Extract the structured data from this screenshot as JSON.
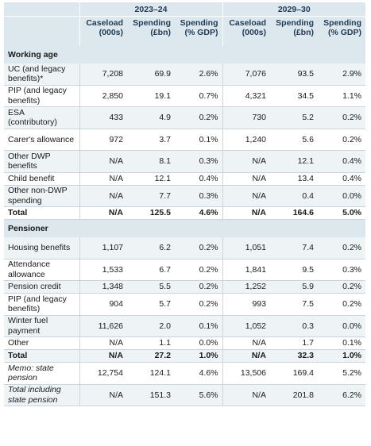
{
  "periods": [
    "2023–24",
    "2029–30"
  ],
  "column_headers": [
    "Caseload (000s)",
    "Spending (£bn)",
    "Spending (% GDP)",
    "Caseload (000s)",
    "Spending (£bn)",
    "Spending (% GDP)"
  ],
  "sections": [
    {
      "title": "Working age",
      "rows": [
        {
          "label": "UC (and legacy benefits)*",
          "values": [
            "7,208",
            "69.9",
            "2.6%",
            "7,076",
            "93.5",
            "2.9%"
          ],
          "h": 2,
          "shade": true
        },
        {
          "label": "PIP (and legacy benefits)",
          "values": [
            "2,850",
            "19.1",
            "0.7%",
            "4,321",
            "34.5",
            "1.1%"
          ],
          "h": 2,
          "shade": false
        },
        {
          "label": "ESA (contributory)",
          "values": [
            "433",
            "4.9",
            "0.2%",
            "730",
            "5.2",
            "0.2%"
          ],
          "h": 2,
          "shade": true
        },
        {
          "label": "Carer's allowance",
          "values": [
            "972",
            "3.7",
            "0.1%",
            "1,240",
            "5.6",
            "0.2%"
          ],
          "h": 2,
          "shade": false
        },
        {
          "label": "Other DWP benefits",
          "values": [
            "N/A",
            "8.1",
            "0.3%",
            "N/A",
            "12.1",
            "0.4%"
          ],
          "h": 2,
          "shade": true
        },
        {
          "label": "Child benefit",
          "values": [
            "N/A",
            "12.1",
            "0.4%",
            "N/A",
            "13.4",
            "0.4%"
          ],
          "h": 1,
          "shade": false
        },
        {
          "label": "Other non-DWP spending",
          "values": [
            "N/A",
            "7.7",
            "0.3%",
            "N/A",
            "0.4",
            "0.0%"
          ],
          "h": 2,
          "shade": true
        },
        {
          "label": "Total",
          "values": [
            "N/A",
            "125.5",
            "4.6%",
            "N/A",
            "164.6",
            "5.0%"
          ],
          "h": 1,
          "shade": false,
          "total": true
        }
      ]
    },
    {
      "title": "Pensioner",
      "rows": [
        {
          "label": "Housing benefits",
          "values": [
            "1,107",
            "6.2",
            "0.2%",
            "1,051",
            "7.4",
            "0.2%"
          ],
          "h": 2,
          "shade": true
        },
        {
          "label": "Attendance allowance",
          "values": [
            "1,533",
            "6.7",
            "0.2%",
            "1,841",
            "9.5",
            "0.3%"
          ],
          "h": 2,
          "shade": false
        },
        {
          "label": "Pension credit",
          "values": [
            "1,348",
            "5.5",
            "0.2%",
            "1,252",
            "5.9",
            "0.2%"
          ],
          "h": 1,
          "shade": true
        },
        {
          "label": "PIP (and legacy benefits)",
          "values": [
            "904",
            "5.7",
            "0.2%",
            "993",
            "7.5",
            "0.2%"
          ],
          "h": 2,
          "shade": false
        },
        {
          "label": "Winter fuel payment",
          "values": [
            "11,626",
            "2.0",
            "0.1%",
            "1,052",
            "0.3",
            "0.0%"
          ],
          "h": 2,
          "shade": true
        },
        {
          "label": "Other",
          "values": [
            "N/A",
            "1.1",
            "0.0%",
            "N/A",
            "1.7",
            "0.1%"
          ],
          "h": 1,
          "shade": false
        },
        {
          "label": "Total",
          "values": [
            "N/A",
            "27.2",
            "1.0%",
            "N/A",
            "32.3",
            "1.0%"
          ],
          "h": 1,
          "shade": true,
          "total": true
        }
      ]
    },
    {
      "title": "",
      "rows": [
        {
          "label": "Memo: state pension",
          "values": [
            "12,754",
            "124.1",
            "4.6%",
            "13,506",
            "169.4",
            "5.2%"
          ],
          "h": 2,
          "shade": false,
          "italic": true
        },
        {
          "label": "Total including state pension",
          "values": [
            "N/A",
            "151.3",
            "5.6%",
            "N/A",
            "201.8",
            "6.2%"
          ],
          "h": 2,
          "shade": true,
          "italic": true
        }
      ]
    }
  ]
}
